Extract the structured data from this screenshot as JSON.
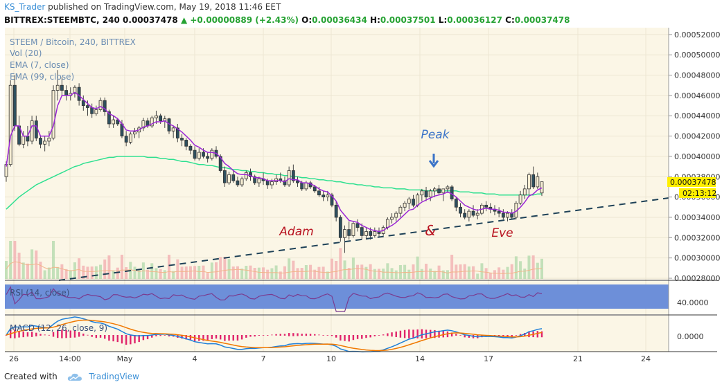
{
  "header": {
    "user": "KS_Trader",
    "published": "published on TradingView.com, May 19, 2018 11:46 EET",
    "symbol": "BITTREX:STEEMBTC, 240",
    "last": "0.00037478",
    "change": "+0.00000889 (+2.43%)",
    "open_label": "O:",
    "open": "0.00036434",
    "high_label": "H:",
    "high": "0.00037501",
    "low_label": "L:",
    "low": "0.00036127",
    "close_label": "C:",
    "close": "0.00037478"
  },
  "legend": {
    "title": "STEEM / Bitcoin, 240, BITTREX",
    "vol": "Vol (20)",
    "ema7": "EMA (7, close)",
    "ema99": "EMA (99, close)",
    "rsi": "RSI (14, close)",
    "rsi_value": "40.0000",
    "macd": "MACD (12, 26, close, 9)",
    "macd_value": "0.0000"
  },
  "annotations": {
    "peak": "Peak",
    "adam": "Adam",
    "amp": "&",
    "eve": "Eve"
  },
  "price_tag": {
    "value": "0.00037478",
    "countdown": "02:13:12"
  },
  "footer": {
    "created": "Created with",
    "brand": "TradingView"
  },
  "colors": {
    "background": "#fbf6e6",
    "ema7": "#9b27d6",
    "ema99": "#2ee090",
    "rsi_band": "#6d8fd9",
    "rsi_line": "#7a3b8f",
    "macd": "#1e7fd9",
    "signal": "#f07800",
    "hist": "#e0246b",
    "trendline": "#1e4157",
    "annotation_blue": "#3a73c8",
    "annotation_red": "#b8121f",
    "price_tag": "#ffef00"
  },
  "chart_data": {
    "type": "candlestick",
    "yticks": [
      "0.00052000",
      "0.00050000",
      "0.00048000",
      "0.00046000",
      "0.00044000",
      "0.00042000",
      "0.00040000",
      "0.00038000",
      "0.00036000",
      "0.00034000",
      "0.00032000",
      "0.00030000",
      "0.00028000"
    ],
    "ylim": [
      0.00028,
      0.000524
    ],
    "xticks": [
      "26",
      "14:00",
      "May",
      "4",
      "7",
      "10",
      "14",
      "17",
      "21",
      "24"
    ],
    "candles": [
      [
        0.00038,
        0.000395,
        0.000375,
        0.000392
      ],
      [
        0.000392,
        0.000475,
        0.00039,
        0.00047
      ],
      [
        0.00047,
        0.00048,
        0.000425,
        0.00043
      ],
      [
        0.00043,
        0.00044,
        0.00041,
        0.000412
      ],
      [
        0.000412,
        0.000425,
        0.000408,
        0.00042
      ],
      [
        0.00042,
        0.00043,
        0.00041,
        0.000415
      ],
      [
        0.000415,
        0.00044,
        0.000412,
        0.000435
      ],
      [
        0.000435,
        0.00044,
        0.000415,
        0.000418
      ],
      [
        0.000418,
        0.00042,
        0.000408,
        0.000412
      ],
      [
        0.000412,
        0.00042,
        0.000405,
        0.000415
      ],
      [
        0.000415,
        0.000425,
        0.00041,
        0.000418
      ],
      [
        0.000418,
        0.00047,
        0.000416,
        0.000465
      ],
      [
        0.000465,
        0.000485,
        0.000455,
        0.00047
      ],
      [
        0.00047,
        0.000478,
        0.00046,
        0.000465
      ],
      [
        0.000465,
        0.00047,
        0.000455,
        0.00046
      ],
      [
        0.00046,
        0.000468,
        0.000455,
        0.000462
      ],
      [
        0.000462,
        0.00047,
        0.000458,
        0.000468
      ],
      [
        0.000468,
        0.000472,
        0.00045,
        0.000455
      ],
      [
        0.000455,
        0.00046,
        0.000445,
        0.00045
      ],
      [
        0.00045,
        0.000455,
        0.00044,
        0.000448
      ],
      [
        0.000448,
        0.000452,
        0.000438,
        0.000442
      ],
      [
        0.000442,
        0.00045,
        0.00044,
        0.000446
      ],
      [
        0.000446,
        0.000458,
        0.000444,
        0.000455
      ],
      [
        0.000455,
        0.000458,
        0.00044,
        0.000444
      ],
      [
        0.000444,
        0.000446,
        0.000428,
        0.000432
      ],
      [
        0.000432,
        0.00044,
        0.000428,
        0.000436
      ],
      [
        0.000436,
        0.000438,
        0.00043,
        0.000432
      ],
      [
        0.000432,
        0.000436,
        0.000418,
        0.00042
      ],
      [
        0.00042,
        0.000425,
        0.00041,
        0.000414
      ],
      [
        0.000414,
        0.000424,
        0.000412,
        0.000422
      ],
      [
        0.000422,
        0.000428,
        0.000418,
        0.000424
      ],
      [
        0.000424,
        0.00043,
        0.000418,
        0.000428
      ],
      [
        0.000428,
        0.000438,
        0.000425,
        0.000435
      ],
      [
        0.000435,
        0.000438,
        0.000428,
        0.00043
      ],
      [
        0.00043,
        0.00044,
        0.000428,
        0.000438
      ],
      [
        0.000438,
        0.000445,
        0.000432,
        0.00044
      ],
      [
        0.00044,
        0.000442,
        0.000432,
        0.000435
      ],
      [
        0.000435,
        0.00044,
        0.000428,
        0.000437
      ],
      [
        0.000437,
        0.000438,
        0.000422,
        0.000425
      ],
      [
        0.000425,
        0.00043,
        0.000418,
        0.000428
      ],
      [
        0.000428,
        0.000432,
        0.000414,
        0.000418
      ],
      [
        0.000418,
        0.000422,
        0.00041,
        0.000416
      ],
      [
        0.000416,
        0.000418,
        0.000406,
        0.00041
      ],
      [
        0.00041,
        0.000412,
        0.000402,
        0.000406
      ],
      [
        0.000406,
        0.00041,
        0.000396,
        0.000398
      ],
      [
        0.000398,
        0.000408,
        0.000396,
        0.000404
      ],
      [
        0.000404,
        0.000408,
        0.000398,
        0.0004
      ],
      [
        0.0004,
        0.000404,
        0.000394,
        0.000398
      ],
      [
        0.000398,
        0.000408,
        0.000396,
        0.000406
      ],
      [
        0.000406,
        0.00041,
        0.000398,
        0.0004
      ],
      [
        0.0004,
        0.000402,
        0.000384,
        0.000386
      ],
      [
        0.000386,
        0.00039,
        0.00037,
        0.000374
      ],
      [
        0.000374,
        0.000385,
        0.000372,
        0.000382
      ],
      [
        0.000382,
        0.000386,
        0.000374,
        0.000376
      ],
      [
        0.000376,
        0.00038,
        0.00037,
        0.000372
      ],
      [
        0.000372,
        0.00038,
        0.00037,
        0.000378
      ],
      [
        0.000378,
        0.000386,
        0.000376,
        0.000384
      ],
      [
        0.000384,
        0.000388,
        0.000376,
        0.00038
      ],
      [
        0.00038,
        0.000382,
        0.000372,
        0.000374
      ],
      [
        0.000374,
        0.00038,
        0.00037,
        0.000378
      ],
      [
        0.000378,
        0.000384,
        0.000372,
        0.000376
      ],
      [
        0.000376,
        0.000378,
        0.000368,
        0.000372
      ],
      [
        0.000372,
        0.000378,
        0.000368,
        0.000375
      ],
      [
        0.000375,
        0.000382,
        0.000372,
        0.000378
      ],
      [
        0.000378,
        0.000384,
        0.000374,
        0.000376
      ],
      [
        0.000376,
        0.00038,
        0.00037,
        0.000372
      ],
      [
        0.000372,
        0.00039,
        0.00037,
        0.000386
      ],
      [
        0.000386,
        0.000392,
        0.000374,
        0.000376
      ],
      [
        0.000376,
        0.00038,
        0.00037,
        0.000374
      ],
      [
        0.000374,
        0.000376,
        0.000366,
        0.000368
      ],
      [
        0.000368,
        0.000376,
        0.000366,
        0.000374
      ],
      [
        0.000374,
        0.000376,
        0.000368,
        0.00037
      ],
      [
        0.00037,
        0.000372,
        0.000364,
        0.000366
      ],
      [
        0.000366,
        0.00037,
        0.00036,
        0.000362
      ],
      [
        0.000362,
        0.000366,
        0.000356,
        0.00036
      ],
      [
        0.00036,
        0.000366,
        0.000356,
        0.000362
      ],
      [
        0.000362,
        0.000364,
        0.00035,
        0.000352
      ],
      [
        0.000352,
        0.000356,
        0.000336,
        0.00034
      ],
      [
        0.00034,
        0.000342,
        0.000316,
        0.00032
      ],
      [
        0.00032,
        0.000332,
        0.000305,
        0.000328
      ],
      [
        0.000328,
        0.000336,
        0.000318,
        0.000322
      ],
      [
        0.000322,
        0.000336,
        0.00032,
        0.000334
      ],
      [
        0.000334,
        0.000338,
        0.000326,
        0.00033
      ],
      [
        0.00033,
        0.000334,
        0.000318,
        0.000322
      ],
      [
        0.000322,
        0.00033,
        0.000318,
        0.000326
      ],
      [
        0.000326,
        0.00033,
        0.000318,
        0.000322
      ],
      [
        0.000322,
        0.00033,
        0.00032,
        0.000326
      ],
      [
        0.000326,
        0.00033,
        0.00032,
        0.000324
      ],
      [
        0.000324,
        0.000332,
        0.000322,
        0.00033
      ],
      [
        0.00033,
        0.00034,
        0.000328,
        0.000338
      ],
      [
        0.000338,
        0.000344,
        0.000334,
        0.00034
      ],
      [
        0.00034,
        0.000346,
        0.000336,
        0.000344
      ],
      [
        0.000344,
        0.000352,
        0.00034,
        0.00035
      ],
      [
        0.00035,
        0.000356,
        0.000346,
        0.000354
      ],
      [
        0.000354,
        0.00036,
        0.000348,
        0.000358
      ],
      [
        0.000358,
        0.000362,
        0.00035,
        0.000352
      ],
      [
        0.000352,
        0.000364,
        0.00035,
        0.000362
      ],
      [
        0.000362,
        0.000368,
        0.000356,
        0.000366
      ],
      [
        0.000366,
        0.00037,
        0.000356,
        0.00036
      ],
      [
        0.00036,
        0.000368,
        0.000356,
        0.000366
      ],
      [
        0.000366,
        0.00037,
        0.00036,
        0.000368
      ],
      [
        0.000368,
        0.000372,
        0.000362,
        0.000364
      ],
      [
        0.000364,
        0.000368,
        0.000356,
        0.000368
      ],
      [
        0.000368,
        0.000372,
        0.000364,
        0.00037
      ],
      [
        0.00037,
        0.000372,
        0.000356,
        0.000358
      ],
      [
        0.000358,
        0.00036,
        0.000346,
        0.00035
      ],
      [
        0.00035,
        0.000354,
        0.00034,
        0.000344
      ],
      [
        0.000344,
        0.000348,
        0.000338,
        0.00034
      ],
      [
        0.00034,
        0.000348,
        0.000336,
        0.000346
      ],
      [
        0.000346,
        0.000352,
        0.00034,
        0.000342
      ],
      [
        0.000342,
        0.000348,
        0.000338,
        0.000344
      ],
      [
        0.000344,
        0.000354,
        0.000342,
        0.000352
      ],
      [
        0.000352,
        0.000356,
        0.000346,
        0.00035
      ],
      [
        0.00035,
        0.000354,
        0.000344,
        0.000348
      ],
      [
        0.000348,
        0.000352,
        0.000342,
        0.000346
      ],
      [
        0.000346,
        0.00035,
        0.00034,
        0.000344
      ],
      [
        0.000344,
        0.000348,
        0.000338,
        0.00034
      ],
      [
        0.00034,
        0.000346,
        0.000336,
        0.000344
      ],
      [
        0.000344,
        0.000348,
        0.000338,
        0.00034
      ],
      [
        0.00034,
        0.000356,
        0.000338,
        0.000354
      ],
      [
        0.000354,
        0.000366,
        0.000352,
        0.000362
      ],
      [
        0.000362,
        0.000372,
        0.000358,
        0.000368
      ],
      [
        0.000368,
        0.000384,
        0.00036,
        0.000382
      ],
      [
        0.000382,
        0.00039,
        0.000368,
        0.00037
      ],
      [
        0.00037,
        0.000384,
        0.000368,
        0.00038
      ],
      [
        0.000364,
        0.000375,
        0.000361,
        0.000375
      ]
    ],
    "ema7": [
      0.00039,
      0.00042,
      0.00043,
      0.00043,
      0.00042,
      0.00042,
      0.00043,
      0.00043,
      0.00042,
      0.00042,
      0.00042,
      0.00043,
      0.00045,
      0.00046,
      0.00046,
      0.00046,
      0.000463,
      0.00046,
      0.000456,
      0.000452,
      0.000448,
      0.000447,
      0.000449,
      0.000447,
      0.000442,
      0.00044,
      0.000437,
      0.000432,
      0.000426,
      0.000425,
      0.000425,
      0.000426,
      0.000429,
      0.00043,
      0.000432,
      0.000434,
      0.000434,
      0.000435,
      0.000432,
      0.00043,
      0.000427,
      0.000424,
      0.00042,
      0.000416,
      0.000411,
      0.000409,
      0.000406,
      0.000404,
      0.000404,
      0.000403,
      0.000399,
      0.000393,
      0.00039,
      0.000386,
      0.000383,
      0.000382,
      0.000382,
      0.000381,
      0.000379,
      0.000379,
      0.000378,
      0.000376,
      0.000376,
      0.000376,
      0.000376,
      0.000375,
      0.000378,
      0.000377,
      0.000377,
      0.000374,
      0.000374,
      0.000373,
      0.000371,
      0.000368,
      0.000366,
      0.000365,
      0.000361,
      0.000356,
      0.000347,
      0.000342,
      0.000337,
      0.000336,
      0.000335,
      0.000332,
      0.00033,
      0.000328,
      0.000327,
      0.000326,
      0.000327,
      0.00033,
      0.000332,
      0.000335,
      0.000339,
      0.000343,
      0.000347,
      0.000348,
      0.000352,
      0.000355,
      0.000357,
      0.000359,
      0.000361,
      0.000362,
      0.000363,
      0.000365,
      0.000363,
      0.00036,
      0.000356,
      0.000352,
      0.00035,
      0.000348,
      0.000347,
      0.000348,
      0.000349,
      0.000348,
      0.000348,
      0.000347,
      0.000345,
      0.000345,
      0.000344,
      0.000346,
      0.00035,
      0.000355,
      0.000361,
      0.000363,
      0.000367,
      0.000369
    ],
    "ema99": [
      0.000348,
      0.000352,
      0.000356,
      0.00036,
      0.000363,
      0.000366,
      0.000369,
      0.000372,
      0.000374,
      0.000376,
      0.000378,
      0.00038,
      0.000382,
      0.000384,
      0.000386,
      0.000388,
      0.00039,
      0.000391,
      0.000393,
      0.000394,
      0.000395,
      0.000396,
      0.000397,
      0.000398,
      0.000399,
      0.000399,
      0.0004,
      0.0004,
      0.0004,
      0.0004,
      0.0004,
      0.0004,
      0.0004,
      0.000399,
      0.000399,
      0.000399,
      0.000398,
      0.000398,
      0.000397,
      0.000397,
      0.000396,
      0.000395,
      0.000395,
      0.000394,
      0.000393,
      0.000392,
      0.000392,
      0.000391,
      0.000391,
      0.00039,
      0.000389,
      0.000389,
      0.000388,
      0.000387,
      0.000387,
      0.000386,
      0.000386,
      0.000385,
      0.000385,
      0.000384,
      0.000384,
      0.000383,
      0.000383,
      0.000382,
      0.000382,
      0.000381,
      0.000381,
      0.00038,
      0.00038,
      0.000379,
      0.000379,
      0.000378,
      0.000378,
      0.000377,
      0.000377,
      0.000376,
      0.000376,
      0.000375,
      0.000375,
      0.000374,
      0.000373,
      0.000373,
      0.000372,
      0.000372,
      0.000371,
      0.000371,
      0.00037,
      0.00037,
      0.000369,
      0.000369,
      0.000369,
      0.000368,
      0.000368,
      0.000368,
      0.000367,
      0.000367,
      0.000367,
      0.000367,
      0.000366,
      0.000366,
      0.000366,
      0.000366,
      0.000366,
      0.000366,
      0.000366,
      0.000366,
      0.000365,
      0.000365,
      0.000365,
      0.000364,
      0.000364,
      0.000364,
      0.000363,
      0.000363,
      0.000363,
      0.000362,
      0.000362,
      0.000362,
      0.000362,
      0.000362,
      0.000362,
      0.000362,
      0.000362,
      0.000362,
      0.000363,
      0.000363
    ]
  }
}
